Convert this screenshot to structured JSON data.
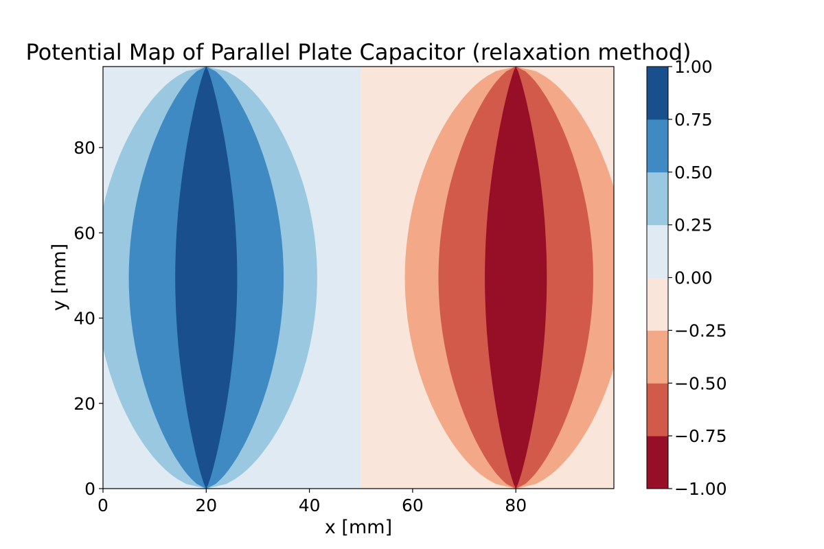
{
  "chart_data": {
    "type": "contour",
    "title": "Potential Map of Parallel Plate Capacitor (relaxation method)",
    "xlabel": "x [mm]",
    "ylabel": "y [mm]",
    "xlim": [
      0,
      99
    ],
    "ylim": [
      0,
      99
    ],
    "x_ticks": [
      0,
      20,
      40,
      60,
      80
    ],
    "y_ticks": [
      0,
      20,
      40,
      60,
      80
    ],
    "x_tick_labels": [
      "0",
      "20",
      "40",
      "60",
      "80"
    ],
    "y_tick_labels": [
      "0",
      "20",
      "40",
      "60",
      "80"
    ],
    "plates": [
      {
        "x": 20,
        "y_from": 0,
        "y_to": 99,
        "potential": 1.0
      },
      {
        "x": 80,
        "y_from": 0,
        "y_to": 99,
        "potential": -1.0
      }
    ],
    "divider_x": 50,
    "contour_levels": [
      {
        "range": [
          0.0,
          0.25
        ],
        "color": "#dfeaf3",
        "side": "left",
        "half_width_mid": null
      },
      {
        "range": [
          0.25,
          0.5
        ],
        "color": "#9ac8e0",
        "side": "left",
        "half_width_mid": 21.5
      },
      {
        "range": [
          0.5,
          0.75
        ],
        "color": "#3f8ac2",
        "side": "left",
        "half_width_mid": 15.0
      },
      {
        "range": [
          0.75,
          1.0
        ],
        "color": "#184f8c",
        "side": "left",
        "half_width_mid": 6.0
      },
      {
        "range": [
          -0.25,
          0.0
        ],
        "color": "#fae5da",
        "side": "right",
        "half_width_mid": null
      },
      {
        "range": [
          -0.5,
          -0.25
        ],
        "color": "#f3a888",
        "side": "right",
        "half_width_mid": 21.5
      },
      {
        "range": [
          -0.75,
          -0.5
        ],
        "color": "#d25a4b",
        "side": "right",
        "half_width_mid": 15.0
      },
      {
        "range": [
          -1.0,
          -0.75
        ],
        "color": "#960f26",
        "side": "right",
        "half_width_mid": 6.0
      }
    ],
    "colorbar": {
      "range": [
        -1.0,
        1.0
      ],
      "ticks": [
        1.0,
        0.75,
        0.5,
        0.25,
        0.0,
        -0.25,
        -0.5,
        -0.75,
        -1.0
      ],
      "tick_labels": [
        "1.00",
        "0.75",
        "0.50",
        "0.25",
        "0.00",
        "−0.25",
        "−0.50",
        "−0.75",
        "−1.00"
      ],
      "colors": [
        "#960f26",
        "#d25a4b",
        "#f3a888",
        "#fae5da",
        "#dfeaf3",
        "#9ac8e0",
        "#3f8ac2",
        "#184f8c"
      ]
    }
  }
}
